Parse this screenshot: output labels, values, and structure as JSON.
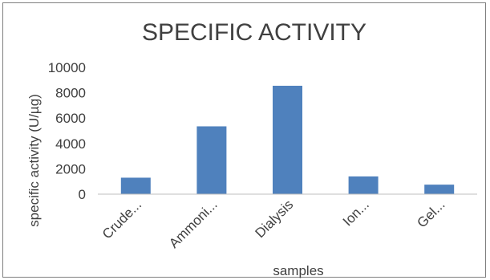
{
  "chart_data": {
    "type": "bar",
    "title": "SPECIFIC ACTIVITY",
    "xlabel": "samples",
    "ylabel": "specific activity (U/µg)",
    "categories": [
      "Crude...",
      "Ammoni...",
      "Dialysis",
      "Ion...",
      "Gel..."
    ],
    "values": [
      1300,
      5350,
      8550,
      1400,
      750
    ],
    "ylim": [
      0,
      10000
    ],
    "yticks": [
      0,
      2000,
      4000,
      6000,
      8000,
      10000
    ],
    "grid": false,
    "legend": "none",
    "bar_color": "#4f81bd",
    "axis_color": "#bfbfbf",
    "text_color": "#404040"
  }
}
